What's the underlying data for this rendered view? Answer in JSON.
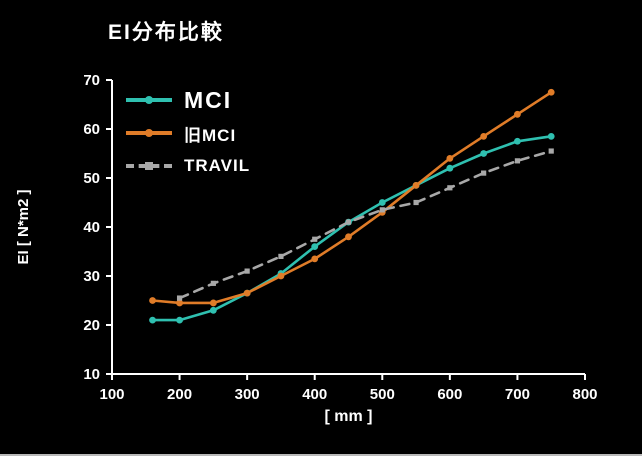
{
  "title": "EI分布比較",
  "chart_data": {
    "type": "line",
    "title": "EI分布比較",
    "xlabel": "[ mm ]",
    "ylabel": "EI [ N*m2 ]",
    "xlim": [
      100,
      800
    ],
    "ylim": [
      10,
      70
    ],
    "xticks": [
      100,
      200,
      300,
      400,
      500,
      600,
      700,
      800
    ],
    "yticks": [
      10,
      20,
      30,
      40,
      50,
      60,
      70
    ],
    "grid": false,
    "legend_position": "top-left",
    "background_color": "#000000",
    "axis_color": "#ffffff",
    "series": [
      {
        "name": "MCI",
        "color": "#2fc0b0",
        "dash": "solid",
        "marker": "circle",
        "points": [
          [
            160,
            21
          ],
          [
            200,
            21
          ],
          [
            250,
            23
          ],
          [
            300,
            26.5
          ],
          [
            350,
            30.5
          ],
          [
            400,
            36
          ],
          [
            450,
            41
          ],
          [
            500,
            45
          ],
          [
            550,
            48.5
          ],
          [
            600,
            52
          ],
          [
            650,
            55
          ],
          [
            700,
            57.5
          ],
          [
            750,
            58.5
          ]
        ]
      },
      {
        "name": "旧MCI",
        "color": "#e07c28",
        "dash": "solid",
        "marker": "circle",
        "points": [
          [
            160,
            25
          ],
          [
            200,
            24.5
          ],
          [
            250,
            24.5
          ],
          [
            300,
            26.5
          ],
          [
            350,
            30
          ],
          [
            400,
            33.5
          ],
          [
            450,
            38
          ],
          [
            500,
            43
          ],
          [
            550,
            48.5
          ],
          [
            600,
            54
          ],
          [
            650,
            58.5
          ],
          [
            700,
            63
          ],
          [
            750,
            67.5
          ]
        ]
      },
      {
        "name": "TRAVIL",
        "color": "#a8a8a8",
        "dash": "dashed",
        "marker": "square",
        "points": [
          [
            200,
            25.5
          ],
          [
            250,
            28.5
          ],
          [
            300,
            31
          ],
          [
            350,
            34
          ],
          [
            400,
            37.5
          ],
          [
            450,
            41
          ],
          [
            500,
            43.5
          ],
          [
            550,
            45
          ],
          [
            600,
            48
          ],
          [
            650,
            51
          ],
          [
            700,
            53.5
          ],
          [
            750,
            55.5
          ]
        ]
      }
    ]
  }
}
